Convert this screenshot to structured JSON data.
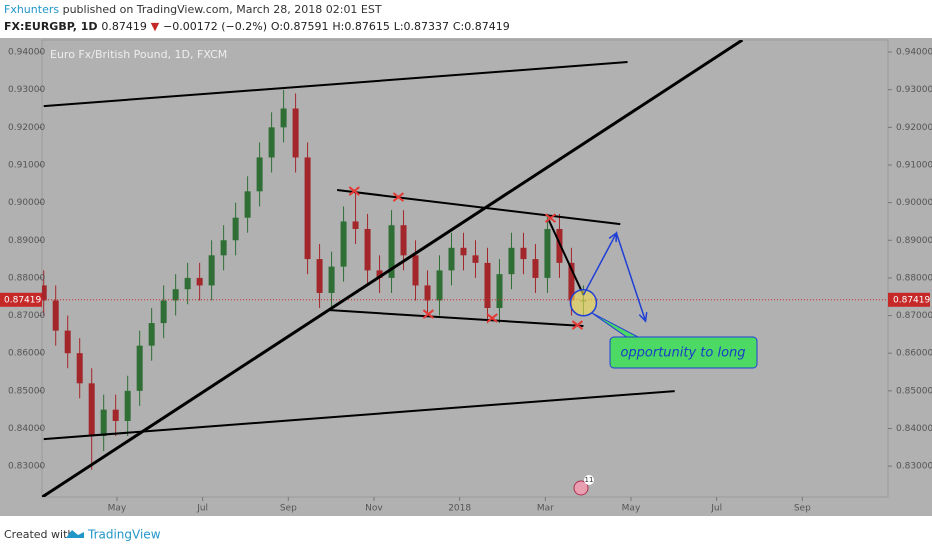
{
  "chart_data": {
    "type": "candlestick",
    "header": {
      "author": "Fxhunters",
      "published": "published on TradingView.com, March 28, 2018 02:01 EST",
      "symbol": "FX:EURGBP, 1D",
      "price": "0.87419",
      "arrow": "▼",
      "change": "−0.00172 (−0.2%)",
      "open": "O:0.87591",
      "high": "H:0.87615",
      "low": "L:0.87337",
      "close": "C:0.87419"
    },
    "title": "Euro Fx/British Pound, 1D, FXCM",
    "xlim": [
      -0.75,
      19.0
    ],
    "ylim": [
      0.8218,
      0.9432
    ],
    "xticks": [
      {
        "value": 1,
        "label": "May"
      },
      {
        "value": 3,
        "label": "Jul"
      },
      {
        "value": 5,
        "label": "Sep"
      },
      {
        "value": 7,
        "label": "Nov"
      },
      {
        "value": 9,
        "label": "2018"
      },
      {
        "value": 11,
        "label": "Mar"
      },
      {
        "value": 13,
        "label": "May"
      },
      {
        "value": 15,
        "label": "Jul"
      },
      {
        "value": 17,
        "label": "Sep"
      }
    ],
    "yticks": [
      {
        "value": 0.83,
        "label": "0.83000"
      },
      {
        "value": 0.84,
        "label": "0.84000"
      },
      {
        "value": 0.85,
        "label": "0.85000"
      },
      {
        "value": 0.86,
        "label": "0.86000"
      },
      {
        "value": 0.87,
        "label": "0.87000"
      },
      {
        "value": 0.88,
        "label": "0.88000"
      },
      {
        "value": 0.89,
        "label": "0.89000"
      },
      {
        "value": 0.9,
        "label": "0.90000"
      },
      {
        "value": 0.91,
        "label": "0.91000"
      },
      {
        "value": 0.92,
        "label": "0.92000"
      },
      {
        "value": 0.93,
        "label": "0.93000"
      },
      {
        "value": 0.94,
        "label": "0.94000"
      }
    ],
    "grid": false,
    "up_color": "#2f6e35",
    "down_color": "#a3262a",
    "x": [
      -0.71,
      -0.43,
      -0.15,
      0.13,
      0.41,
      0.69,
      0.97,
      1.25,
      1.53,
      1.81,
      2.09,
      2.37,
      2.65,
      2.93,
      3.21,
      3.49,
      3.77,
      4.05,
      4.33,
      4.61,
      4.89,
      5.17,
      5.45,
      5.73,
      6.01,
      6.29,
      6.57,
      6.85,
      7.13,
      7.41,
      7.69,
      7.97,
      8.25,
      8.53,
      8.81,
      9.09,
      9.37,
      9.65,
      9.93,
      10.21,
      10.49,
      10.77,
      11.05,
      11.33,
      11.61,
      11.89
    ],
    "open": [
      0.878,
      0.874,
      0.866,
      0.86,
      0.852,
      0.838,
      0.845,
      0.842,
      0.85,
      0.862,
      0.868,
      0.874,
      0.877,
      0.88,
      0.878,
      0.886,
      0.89,
      0.896,
      0.903,
      0.912,
      0.92,
      0.925,
      0.912,
      0.885,
      0.876,
      0.883,
      0.895,
      0.893,
      0.882,
      0.88,
      0.894,
      0.886,
      0.878,
      0.874,
      0.882,
      0.888,
      0.886,
      0.884,
      0.872,
      0.881,
      0.888,
      0.885,
      0.88,
      0.893,
      0.884,
      0.874
    ],
    "high": [
      0.882,
      0.878,
      0.87,
      0.864,
      0.856,
      0.849,
      0.849,
      0.854,
      0.866,
      0.872,
      0.878,
      0.881,
      0.884,
      0.884,
      0.89,
      0.894,
      0.9,
      0.907,
      0.916,
      0.924,
      0.93,
      0.929,
      0.916,
      0.889,
      0.887,
      0.899,
      0.903,
      0.897,
      0.886,
      0.898,
      0.898,
      0.89,
      0.882,
      0.886,
      0.892,
      0.892,
      0.89,
      0.888,
      0.885,
      0.892,
      0.892,
      0.889,
      0.897,
      0.897,
      0.888,
      0.878
    ],
    "low": [
      0.87,
      0.862,
      0.856,
      0.848,
      0.829,
      0.834,
      0.838,
      0.838,
      0.846,
      0.858,
      0.864,
      0.87,
      0.873,
      0.874,
      0.874,
      0.882,
      0.886,
      0.892,
      0.899,
      0.908,
      0.916,
      0.908,
      0.881,
      0.872,
      0.872,
      0.879,
      0.889,
      0.878,
      0.876,
      0.876,
      0.882,
      0.874,
      0.87,
      0.87,
      0.878,
      0.882,
      0.88,
      0.868,
      0.868,
      0.877,
      0.881,
      0.876,
      0.876,
      0.88,
      0.87,
      0.87
    ],
    "close": [
      0.874,
      0.866,
      0.86,
      0.852,
      0.838,
      0.845,
      0.842,
      0.85,
      0.862,
      0.868,
      0.874,
      0.877,
      0.88,
      0.878,
      0.886,
      0.89,
      0.896,
      0.903,
      0.912,
      0.92,
      0.925,
      0.912,
      0.885,
      0.876,
      0.883,
      0.895,
      0.893,
      0.882,
      0.88,
      0.894,
      0.886,
      0.878,
      0.874,
      0.882,
      0.888,
      0.886,
      0.884,
      0.872,
      0.881,
      0.888,
      0.885,
      0.88,
      0.893,
      0.884,
      0.874,
      0.874
    ],
    "last_price": {
      "value": 0.87419,
      "label": "0.87419"
    },
    "last_color": "#c62828",
    "trendlines": [
      {
        "x": [
          -0.71,
          12.92
        ],
        "y": [
          0.92565,
          0.93734
        ],
        "color": "#000000"
      },
      {
        "x": [
          -0.75,
          15.6
        ],
        "y": [
          0.82176,
          0.94319
        ],
        "color": "#000000"
      },
      {
        "x": [
          -0.71,
          14.02
        ],
        "y": [
          0.83718,
          0.84994
        ],
        "color": "#000000"
      },
      {
        "x": [
          6.14,
          12.75
        ],
        "y": [
          0.90334,
          0.8943
        ],
        "color": "#000000"
      },
      {
        "x": [
          5.93,
          11.89
        ],
        "y": [
          0.87146,
          0.86721
        ],
        "color": "#000000"
      },
      {
        "x": [
          11.07,
          11.89
        ],
        "y": [
          0.89564,
          0.87544
        ],
        "color": "#000000"
      }
    ],
    "projection": {
      "x": [
        11.89,
        12.66,
        13.34
      ],
      "y": [
        0.87544,
        0.89191,
        0.86853
      ],
      "color": "#1f3fd6"
    },
    "markers": {
      "x": [
        6.54,
        7.57,
        8.27,
        9.76,
        11.12,
        11.75
      ],
      "y": [
        0.90307,
        0.90148,
        0.87039,
        0.86933,
        0.89589,
        0.86747
      ],
      "color": "#e53935"
    },
    "highlight": {
      "x": 11.89,
      "y": 0.87341
    },
    "callout": "opportunity to long",
    "event_badge": "11",
    "footer": {
      "created": "Created with",
      "brand": "TradingView"
    }
  }
}
